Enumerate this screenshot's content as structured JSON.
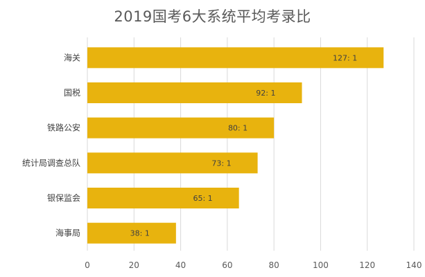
{
  "chart_data": {
    "type": "bar",
    "orientation": "horizontal",
    "title": "2019国考6大系统平均考录比",
    "categories": [
      "海关",
      "国税",
      "铁路公安",
      "统计局调查总队",
      "银保监会",
      "海事局"
    ],
    "values": [
      127,
      92,
      80,
      73,
      65,
      38
    ],
    "data_labels": [
      "127: 1",
      "92: 1",
      "80: 1",
      "73: 1",
      "65: 1",
      "38: 1"
    ],
    "xlim": [
      0,
      140
    ],
    "x_ticks": [
      0,
      20,
      40,
      60,
      80,
      100,
      120,
      140
    ],
    "xlabel": "",
    "ylabel": "",
    "grid": "vertical",
    "legend": "none",
    "bar_color": "#E8B30E",
    "gridline_color": "#D9D9D9"
  }
}
